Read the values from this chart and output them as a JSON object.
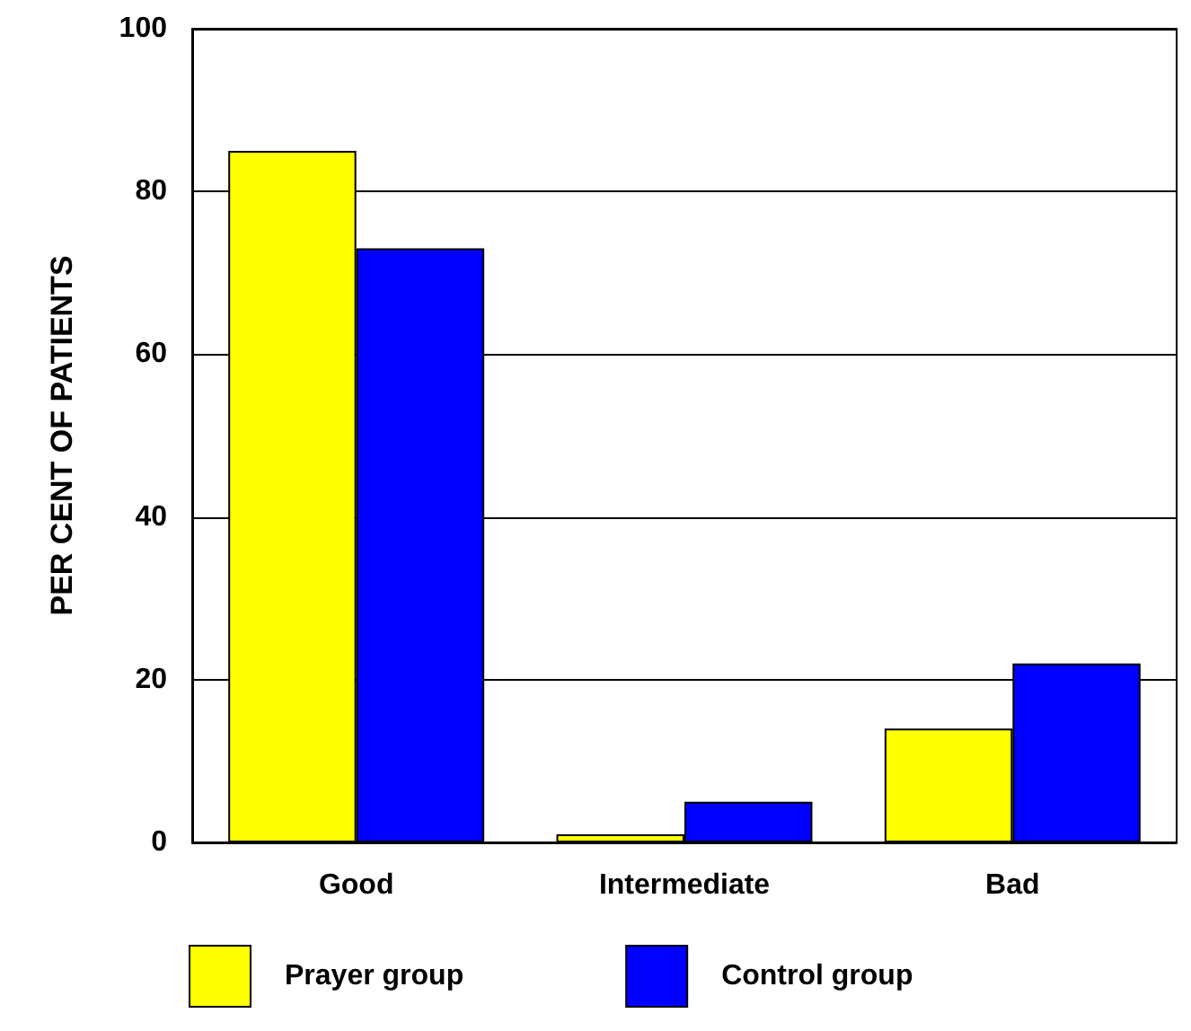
{
  "chart_data": {
    "type": "bar",
    "ylabel": "PER CENT OF PATIENTS",
    "categories": [
      "Good",
      "Intermediate",
      "Bad"
    ],
    "series": [
      {
        "name": "Prayer group",
        "color": "#ffff00",
        "values": [
          85,
          1,
          14
        ]
      },
      {
        "name": "Control group",
        "color": "#0000ff",
        "values": [
          73,
          5,
          22
        ]
      }
    ],
    "ylim": [
      0,
      100
    ],
    "yticks": [
      0,
      20,
      40,
      60,
      80,
      100
    ],
    "grid": "y",
    "legend": "bottom"
  }
}
